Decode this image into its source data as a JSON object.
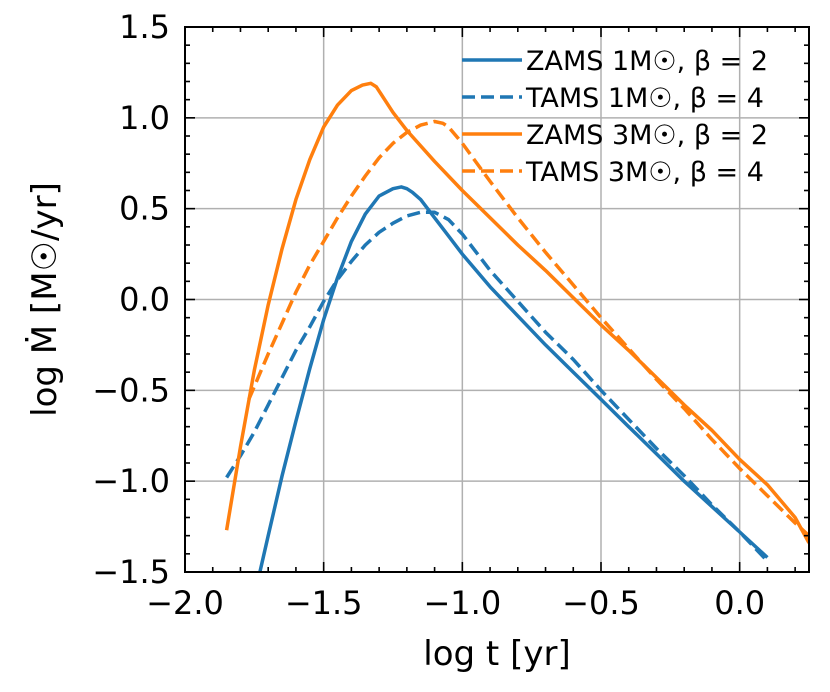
{
  "chart_data": {
    "type": "line",
    "title": "",
    "xlabel": "log t [yr]",
    "ylabel": "log Ṁ [M☉/yr]",
    "xlim": [
      -2.0,
      0.25
    ],
    "ylim": [
      -1.5,
      1.5
    ],
    "xticks": [
      -2.0,
      -1.5,
      -1.0,
      -0.5,
      0.0
    ],
    "xtick_labels": [
      "−2.0",
      "−1.5",
      "−1.0",
      "−0.5",
      "0.0"
    ],
    "yticks": [
      -1.5,
      -1.0,
      -0.5,
      0.0,
      0.5,
      1.0,
      1.5
    ],
    "ytick_labels": [
      "−1.5",
      "−1.0",
      "−0.5",
      "0.0",
      "0.5",
      "1.0",
      "1.5"
    ],
    "grid": true,
    "legend_position": "top-right",
    "series": [
      {
        "name": "ZAMS 1M☉, β = 2",
        "color": "#1f77b4",
        "dash": "solid",
        "x": [
          -1.73,
          -1.7,
          -1.65,
          -1.6,
          -1.55,
          -1.5,
          -1.45,
          -1.4,
          -1.35,
          -1.3,
          -1.25,
          -1.22,
          -1.2,
          -1.18,
          -1.15,
          -1.1,
          -1.05,
          -1.0,
          -0.9,
          -0.8,
          -0.7,
          -0.6,
          -0.5,
          -0.4,
          -0.3,
          -0.2,
          -0.1,
          0.0,
          0.1
        ],
        "y": [
          -1.5,
          -1.3,
          -0.97,
          -0.67,
          -0.38,
          -0.11,
          0.12,
          0.32,
          0.47,
          0.57,
          0.61,
          0.62,
          0.61,
          0.59,
          0.55,
          0.45,
          0.35,
          0.25,
          0.07,
          -0.09,
          -0.25,
          -0.4,
          -0.55,
          -0.7,
          -0.85,
          -1.0,
          -1.14,
          -1.28,
          -1.42
        ]
      },
      {
        "name": "TAMS 1M☉, β = 4",
        "color": "#1f77b4",
        "dash": "dashed",
        "x": [
          -1.85,
          -1.8,
          -1.75,
          -1.7,
          -1.65,
          -1.6,
          -1.55,
          -1.5,
          -1.45,
          -1.4,
          -1.35,
          -1.3,
          -1.25,
          -1.2,
          -1.15,
          -1.1,
          -1.05,
          -1.0,
          -0.9,
          -0.8,
          -0.7,
          -0.6,
          -0.5,
          -0.4,
          -0.3,
          -0.2,
          -0.1,
          0.0,
          0.1
        ],
        "y": [
          -0.98,
          -0.86,
          -0.73,
          -0.58,
          -0.43,
          -0.28,
          -0.15,
          -0.01,
          0.11,
          0.21,
          0.3,
          0.37,
          0.42,
          0.46,
          0.48,
          0.48,
          0.44,
          0.36,
          0.16,
          -0.01,
          -0.18,
          -0.33,
          -0.5,
          -0.66,
          -0.82,
          -0.97,
          -1.13,
          -1.28,
          -1.44
        ]
      },
      {
        "name": "ZAMS 3M☉, β = 2",
        "color": "#ff7f0e",
        "dash": "solid",
        "x": [
          -1.85,
          -1.8,
          -1.75,
          -1.7,
          -1.65,
          -1.6,
          -1.55,
          -1.5,
          -1.45,
          -1.4,
          -1.36,
          -1.33,
          -1.31,
          -1.28,
          -1.25,
          -1.2,
          -1.1,
          -1.0,
          -0.9,
          -0.8,
          -0.7,
          -0.6,
          -0.5,
          -0.4,
          -0.3,
          -0.2,
          -0.1,
          0.0,
          0.1,
          0.2,
          0.25
        ],
        "y": [
          -1.27,
          -0.81,
          -0.39,
          -0.03,
          0.28,
          0.55,
          0.77,
          0.95,
          1.07,
          1.15,
          1.18,
          1.19,
          1.17,
          1.1,
          1.03,
          0.93,
          0.76,
          0.6,
          0.45,
          0.3,
          0.16,
          0.01,
          -0.14,
          -0.28,
          -0.43,
          -0.58,
          -0.72,
          -0.88,
          -1.02,
          -1.2,
          -1.34
        ]
      },
      {
        "name": "TAMS 3M☉, β = 4",
        "color": "#ff7f0e",
        "dash": "dashed",
        "x": [
          -1.77,
          -1.7,
          -1.65,
          -1.6,
          -1.55,
          -1.5,
          -1.45,
          -1.4,
          -1.35,
          -1.3,
          -1.25,
          -1.2,
          -1.15,
          -1.1,
          -1.07,
          -1.05,
          -1.0,
          -0.9,
          -0.8,
          -0.7,
          -0.6,
          -0.5,
          -0.4,
          -0.3,
          -0.2,
          -0.1,
          0.0,
          0.1,
          0.2,
          0.25
        ],
        "y": [
          -0.55,
          -0.3,
          -0.13,
          0.04,
          0.19,
          0.32,
          0.45,
          0.57,
          0.68,
          0.78,
          0.86,
          0.92,
          0.96,
          0.98,
          0.97,
          0.95,
          0.86,
          0.65,
          0.45,
          0.26,
          0.08,
          -0.1,
          -0.27,
          -0.44,
          -0.6,
          -0.77,
          -0.93,
          -1.08,
          -1.23,
          -1.3
        ]
      }
    ]
  }
}
